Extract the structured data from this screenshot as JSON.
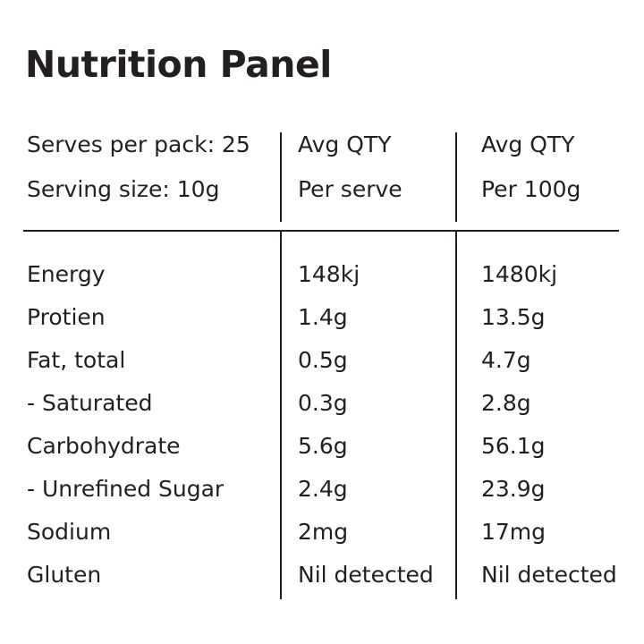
{
  "title": "Nutrition Panel",
  "header": {
    "serves_per_pack": "Serves per pack: 25",
    "serving_size": "Serving size: 10g",
    "col2_line1": "Avg QTY",
    "col2_line2": "Per serve",
    "col3_line1": "Avg QTY",
    "col3_line2": "Per 100g"
  },
  "rows": [
    {
      "nutrient": "Energy",
      "per_serve": "148kj",
      "per_100g": "1480kj"
    },
    {
      "nutrient": "Protien",
      "per_serve": "1.4g",
      "per_100g": "13.5g"
    },
    {
      "nutrient": "Fat, total",
      "per_serve": "0.5g",
      "per_100g": "4.7g"
    },
    {
      "nutrient": "- Saturated",
      "per_serve": "0.3g",
      "per_100g": "2.8g"
    },
    {
      "nutrient": "Carbohydrate",
      "per_serve": "5.6g",
      "per_100g": "56.1g"
    },
    {
      "nutrient": "- Unrefined Sugar",
      "per_serve": "2.4g",
      "per_100g": "23.9g"
    },
    {
      "nutrient": "Sodium",
      "per_serve": "2mg",
      "per_100g": "17mg"
    },
    {
      "nutrient": "Gluten",
      "per_serve": "Nil detected",
      "per_100g": "Nil detected"
    }
  ]
}
